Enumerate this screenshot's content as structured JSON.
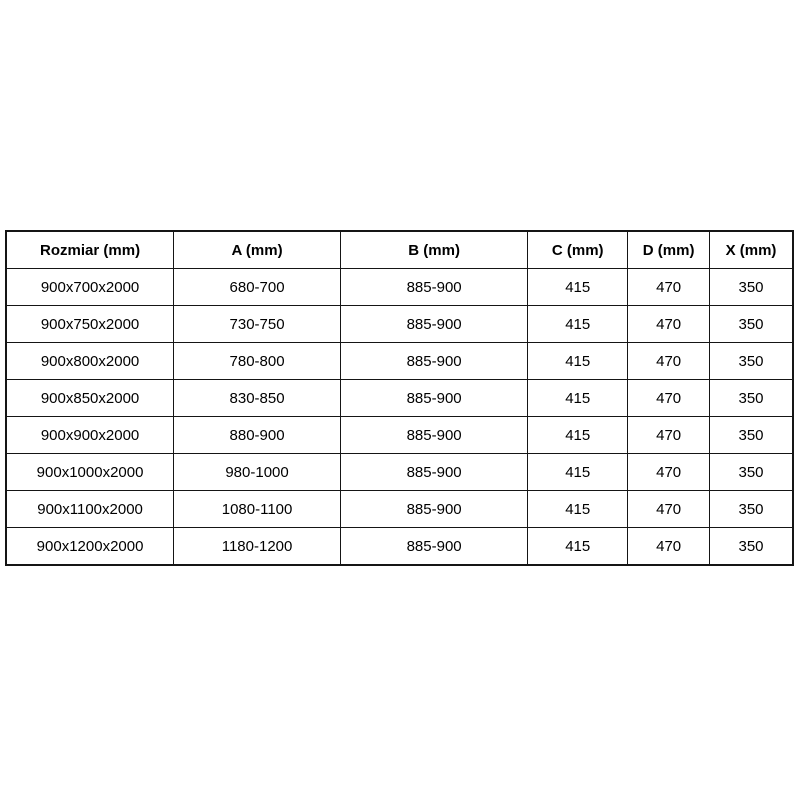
{
  "page": {
    "background_color": "#ffffff",
    "border_color": "#151515",
    "text_color": "#000000"
  },
  "table": {
    "headers": [
      "Rozmiar (mm)",
      "A (mm)",
      "B (mm)",
      "C (mm)",
      "D (mm)",
      "X (mm)"
    ],
    "rows": [
      [
        "900x700x2000",
        "680-700",
        "885-900",
        "415",
        "470",
        "350"
      ],
      [
        "900x750x2000",
        "730-750",
        "885-900",
        "415",
        "470",
        "350"
      ],
      [
        "900x800x2000",
        "780-800",
        "885-900",
        "415",
        "470",
        "350"
      ],
      [
        "900x850x2000",
        "830-850",
        "885-900",
        "415",
        "470",
        "350"
      ],
      [
        "900x900x2000",
        "880-900",
        "885-900",
        "415",
        "470",
        "350"
      ],
      [
        "900x1000x2000",
        "980-1000",
        "885-900",
        "415",
        "470",
        "350"
      ],
      [
        "900x1100x2000",
        "1080-1100",
        "885-900",
        "415",
        "470",
        "350"
      ],
      [
        "900x1200x2000",
        "1180-1200",
        "885-900",
        "415",
        "470",
        "350"
      ]
    ]
  }
}
